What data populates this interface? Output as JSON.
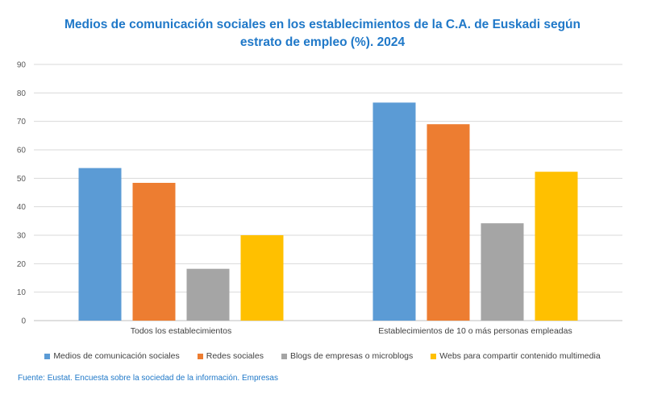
{
  "chart_data": {
    "type": "bar",
    "title_line1": "Medios de comunicación sociales en los establecimientos de la C.A. de Euskadi según",
    "title_line2": "estrato de empleo (%). 2024",
    "categories": [
      "Todos los establecimientos",
      "Establecimientos de 10 o más personas empleadas"
    ],
    "series": [
      {
        "name": "Medios de comunicación sociales",
        "color": "#5b9bd5",
        "values": [
          53.6,
          76.6
        ]
      },
      {
        "name": "Redes sociales",
        "color": "#ed7d31",
        "values": [
          48.4,
          69.0
        ]
      },
      {
        "name": "Blogs de empresas o microblogs",
        "color": "#a5a5a5",
        "values": [
          18.2,
          34.2
        ]
      },
      {
        "name": "Webs para compartir contenido multimedia",
        "color": "#ffc000",
        "values": [
          30.0,
          52.3
        ]
      }
    ],
    "ylim": [
      0,
      90
    ],
    "yticks": [
      "0",
      "10",
      "20",
      "30",
      "40",
      "50",
      "60",
      "70",
      "80",
      "90"
    ],
    "xlabel": "",
    "ylabel": "",
    "grid": true,
    "legend_position": "bottom"
  },
  "source": "Fuente: Eustat. Encuesta sobre la sociedad de la información. Empresas"
}
